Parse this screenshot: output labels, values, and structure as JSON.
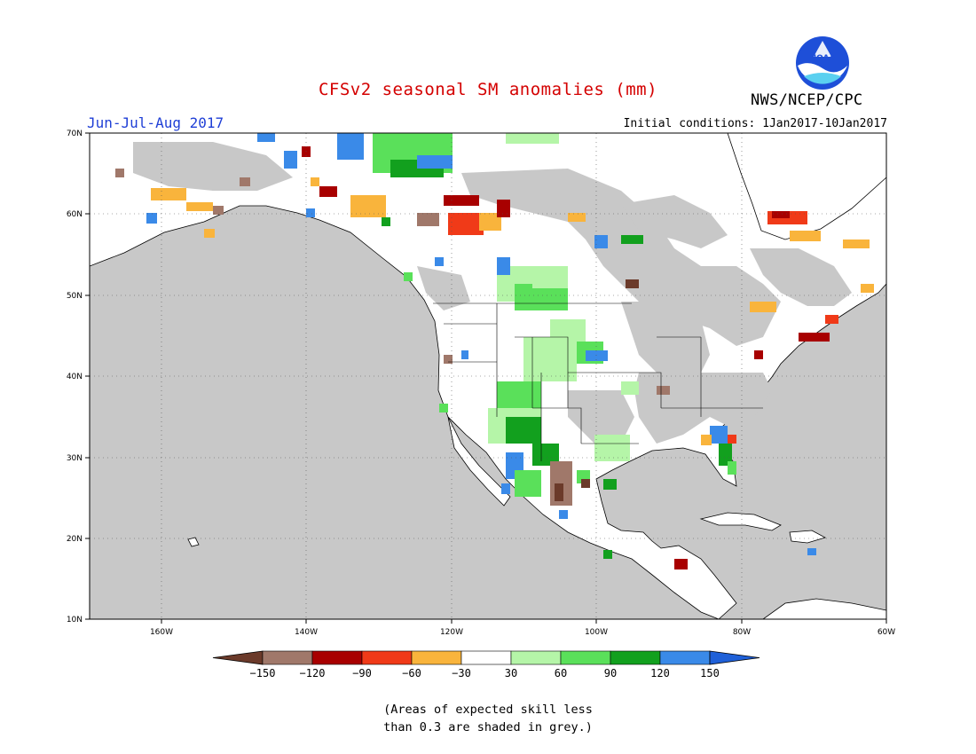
{
  "header": {
    "title": "CFSv2 seasonal SM anomalies (mm)",
    "agency": "NWS/NCEP/CPC",
    "season": "Jun-Jul-Aug 2017",
    "initial_conditions": "Initial conditions: 1Jan2017-10Jan2017",
    "logo_text": "NOAA"
  },
  "map": {
    "region": "North America",
    "lat_labels": [
      "70N",
      "60N",
      "50N",
      "40N",
      "30N",
      "20N",
      "10N"
    ],
    "lon_labels": [
      "160W",
      "140W",
      "120W",
      "100W",
      "80W",
      "60W"
    ],
    "lat_range": [
      10,
      70
    ],
    "lon_range": [
      -170,
      -60
    ],
    "grid_style": "dotted",
    "skill_mask_color": "#c8c8c8",
    "land_color": "#ffffff",
    "ocean_color": "#c8c8c8"
  },
  "legend": {
    "ticks": [
      "-150",
      "-120",
      "-90",
      "-60",
      "-30",
      "30",
      "60",
      "90",
      "120",
      "150"
    ],
    "colors": [
      "#6b3a2a",
      "#a0786a",
      "#a80000",
      "#f03a18",
      "#f9b43c",
      "#ffffff",
      "#b5f5a8",
      "#5ae05a",
      "#12a01e",
      "#3a8ae8",
      "#1f60d8"
    ],
    "units": "mm"
  },
  "note": {
    "line1": "(Areas of expected skill less",
    "line2": "than 0.3 are shaded in grey.)"
  }
}
